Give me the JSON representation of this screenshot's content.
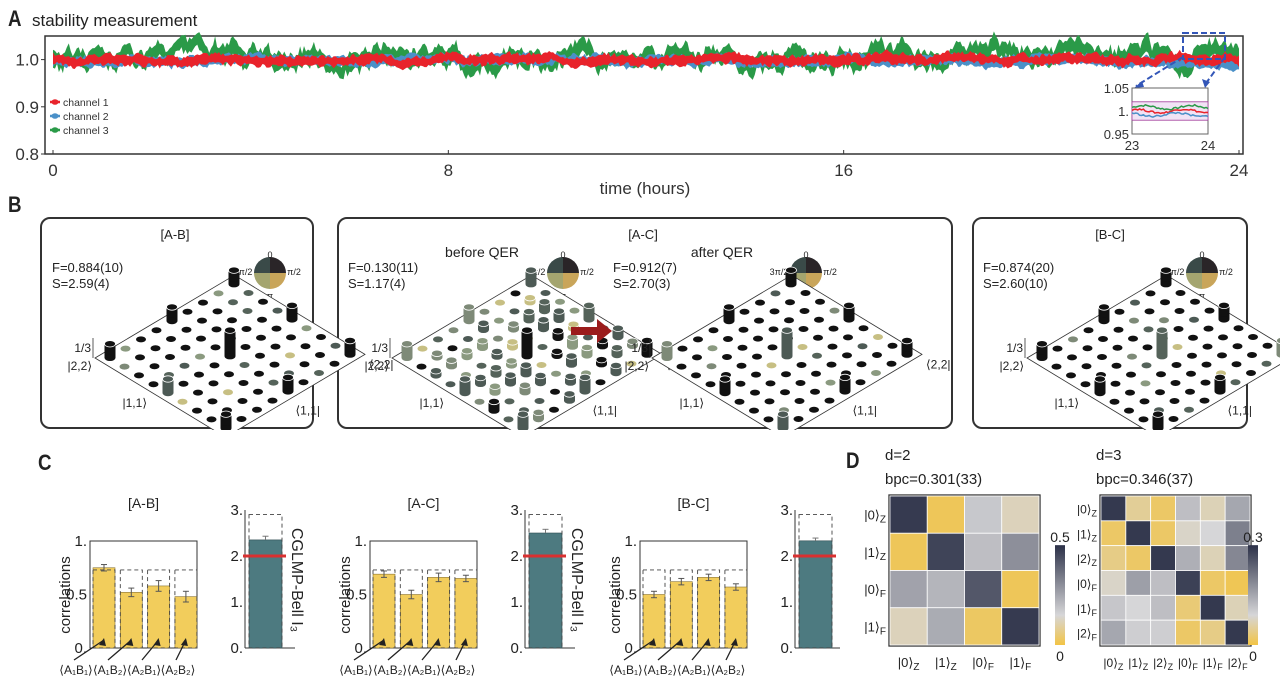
{
  "colors": {
    "channel1": "#e8232b",
    "channel2": "#4a90c8",
    "channel3": "#2a9a48",
    "bar_yellow": "#f2cd5c",
    "bar_teal": "#4d7a80",
    "bell_limit": "#d93030",
    "arrow_red": "#9b1c1c",
    "inset_dash": "#3356b8",
    "heat_high": "#2c3148",
    "heat_mid": "#d6d6d8",
    "heat_low": "#f2c445"
  },
  "panels": {
    "A": {
      "letter": "A",
      "title": "stability measurement"
    },
    "B": {
      "letter": "B"
    },
    "C": {
      "letter": "C"
    },
    "D": {
      "letter": "D"
    }
  },
  "chart_data": [
    {
      "id": "A",
      "type": "line",
      "title": "stability measurement",
      "xlabel": "time (hours)",
      "ylabel": "",
      "xlim": [
        0,
        24
      ],
      "ylim": [
        0.8,
        1.05
      ],
      "xticks": [
        "0",
        "8",
        "16",
        "24"
      ],
      "yticks": [
        "0.8",
        "0.9",
        "1.0"
      ],
      "legend": {
        "placement": "bottom-left",
        "entries": [
          "channel 1",
          "channel 2",
          "channel 3"
        ]
      },
      "series": [
        {
          "name": "channel 1",
          "mean": 1.0,
          "spread": 0.012
        },
        {
          "name": "channel 2",
          "mean": 0.998,
          "spread": 0.012
        },
        {
          "name": "channel 3",
          "mean": 1.005,
          "spread": 0.02
        }
      ],
      "inset": {
        "xlim": [
          23,
          24
        ],
        "ylim": [
          0.95,
          1.05
        ],
        "xticks": [
          "23",
          "24"
        ],
        "yticks": [
          "0.95",
          "1.",
          "1.05"
        ]
      }
    },
    {
      "id": "B",
      "type": "heatmap",
      "description": "3D density-matrix bar plots (9x9) with phase color wheel",
      "z_tick": "1/3",
      "row_labels": [
        "|0,0⟩",
        "|1,1⟩",
        "|2,2⟩"
      ],
      "col_labels": [
        "⟨0,0|",
        "⟨1,1|",
        "⟨2,2|"
      ],
      "phase_legend": [
        "0",
        "π/2",
        "π",
        "3π/2"
      ],
      "plots": [
        {
          "title": "[A-B]",
          "subtitle": "",
          "F": "F=0.884(10)",
          "S": "S=2.59(4)"
        },
        {
          "title": "[A-C]",
          "subtitle": "before QER",
          "F": "F=0.130(11)",
          "S": "S=1.17(4)"
        },
        {
          "title": "",
          "subtitle": "after QER",
          "F": "F=0.912(7)",
          "S": "S=2.70(3)"
        },
        {
          "title": "[B-C]",
          "subtitle": "",
          "F": "F=0.874(20)",
          "S": "S=2.60(10)"
        }
      ]
    },
    {
      "id": "C",
      "type": "bar",
      "ylabel": "correlations",
      "ylim": [
        0,
        1
      ],
      "yticks": [
        "0.",
        "0.5",
        "1."
      ],
      "categories": [
        "⟨A₁B₁⟩",
        "⟨A₁B₂⟩",
        "⟨A₂B₁⟩",
        "⟨A₂B₂⟩"
      ],
      "ideal": 0.73,
      "bell": {
        "ylabel": "CGLMP-Bell I₃",
        "ylim": [
          0,
          3
        ],
        "yticks": [
          "0.",
          "1.",
          "2.",
          "3."
        ],
        "classical_limit": 2.0,
        "ideal": 2.9
      },
      "groups": [
        {
          "title": "[A-B]",
          "values": [
            0.75,
            0.52,
            0.58,
            0.48
          ],
          "errors": [
            0.03,
            0.04,
            0.05,
            0.05
          ],
          "bell_value": 2.35,
          "bell_error": 0.08
        },
        {
          "title": "[A-C]",
          "values": [
            0.69,
            0.5,
            0.66,
            0.65
          ],
          "errors": [
            0.03,
            0.04,
            0.04,
            0.03
          ],
          "bell_value": 2.5,
          "bell_error": 0.08
        },
        {
          "title": "[B-C]",
          "values": [
            0.5,
            0.62,
            0.66,
            0.57
          ],
          "errors": [
            0.03,
            0.03,
            0.03,
            0.03
          ],
          "bell_value": 2.33,
          "bell_error": 0.06
        }
      ]
    },
    {
      "id": "D",
      "type": "heatmap",
      "maps": [
        {
          "title": "d=2",
          "bpc": "bpc=0.301(33)",
          "labels": [
            "|0⟩Z",
            "|1⟩Z",
            "|0⟩F",
            "|1⟩F"
          ],
          "label_base": [
            "|0⟩",
            "|1⟩",
            "|0⟩",
            "|1⟩"
          ],
          "label_sub": [
            "Z",
            "Z",
            "F",
            "F"
          ],
          "colorbar": {
            "min": "0",
            "max": "0.5"
          },
          "vmax": 0.5,
          "values": [
            [
              0.48,
              0.02,
              0.18,
              0.12
            ],
            [
              0.02,
              0.46,
              0.2,
              0.3
            ],
            [
              0.26,
              0.22,
              0.42,
              0.02
            ],
            [
              0.12,
              0.24,
              0.03,
              0.48
            ]
          ]
        },
        {
          "title": "d=3",
          "bpc": "bpc=0.346(37)",
          "labels": [
            "|0⟩Z",
            "|1⟩Z",
            "|2⟩Z",
            "|0⟩F",
            "|1⟩F",
            "|2⟩F"
          ],
          "label_base": [
            "|0⟩",
            "|1⟩",
            "|2⟩",
            "|0⟩",
            "|1⟩",
            "|2⟩"
          ],
          "label_sub": [
            "Z",
            "Z",
            "Z",
            "F",
            "F",
            "F"
          ],
          "colorbar": {
            "min": "0",
            "max": "0.3"
          },
          "vmax": 0.3,
          "values": [
            [
              0.29,
              0.05,
              0.02,
              0.12,
              0.07,
              0.15
            ],
            [
              0.02,
              0.29,
              0.02,
              0.08,
              0.09,
              0.2
            ],
            [
              0.04,
              0.02,
              0.29,
              0.14,
              0.07,
              0.19
            ],
            [
              0.08,
              0.16,
              0.12,
              0.28,
              0.02,
              0.01
            ],
            [
              0.11,
              0.09,
              0.12,
              0.03,
              0.29,
              0.07
            ],
            [
              0.15,
              0.1,
              0.1,
              0.02,
              0.04,
              0.29
            ]
          ]
        }
      ]
    }
  ]
}
